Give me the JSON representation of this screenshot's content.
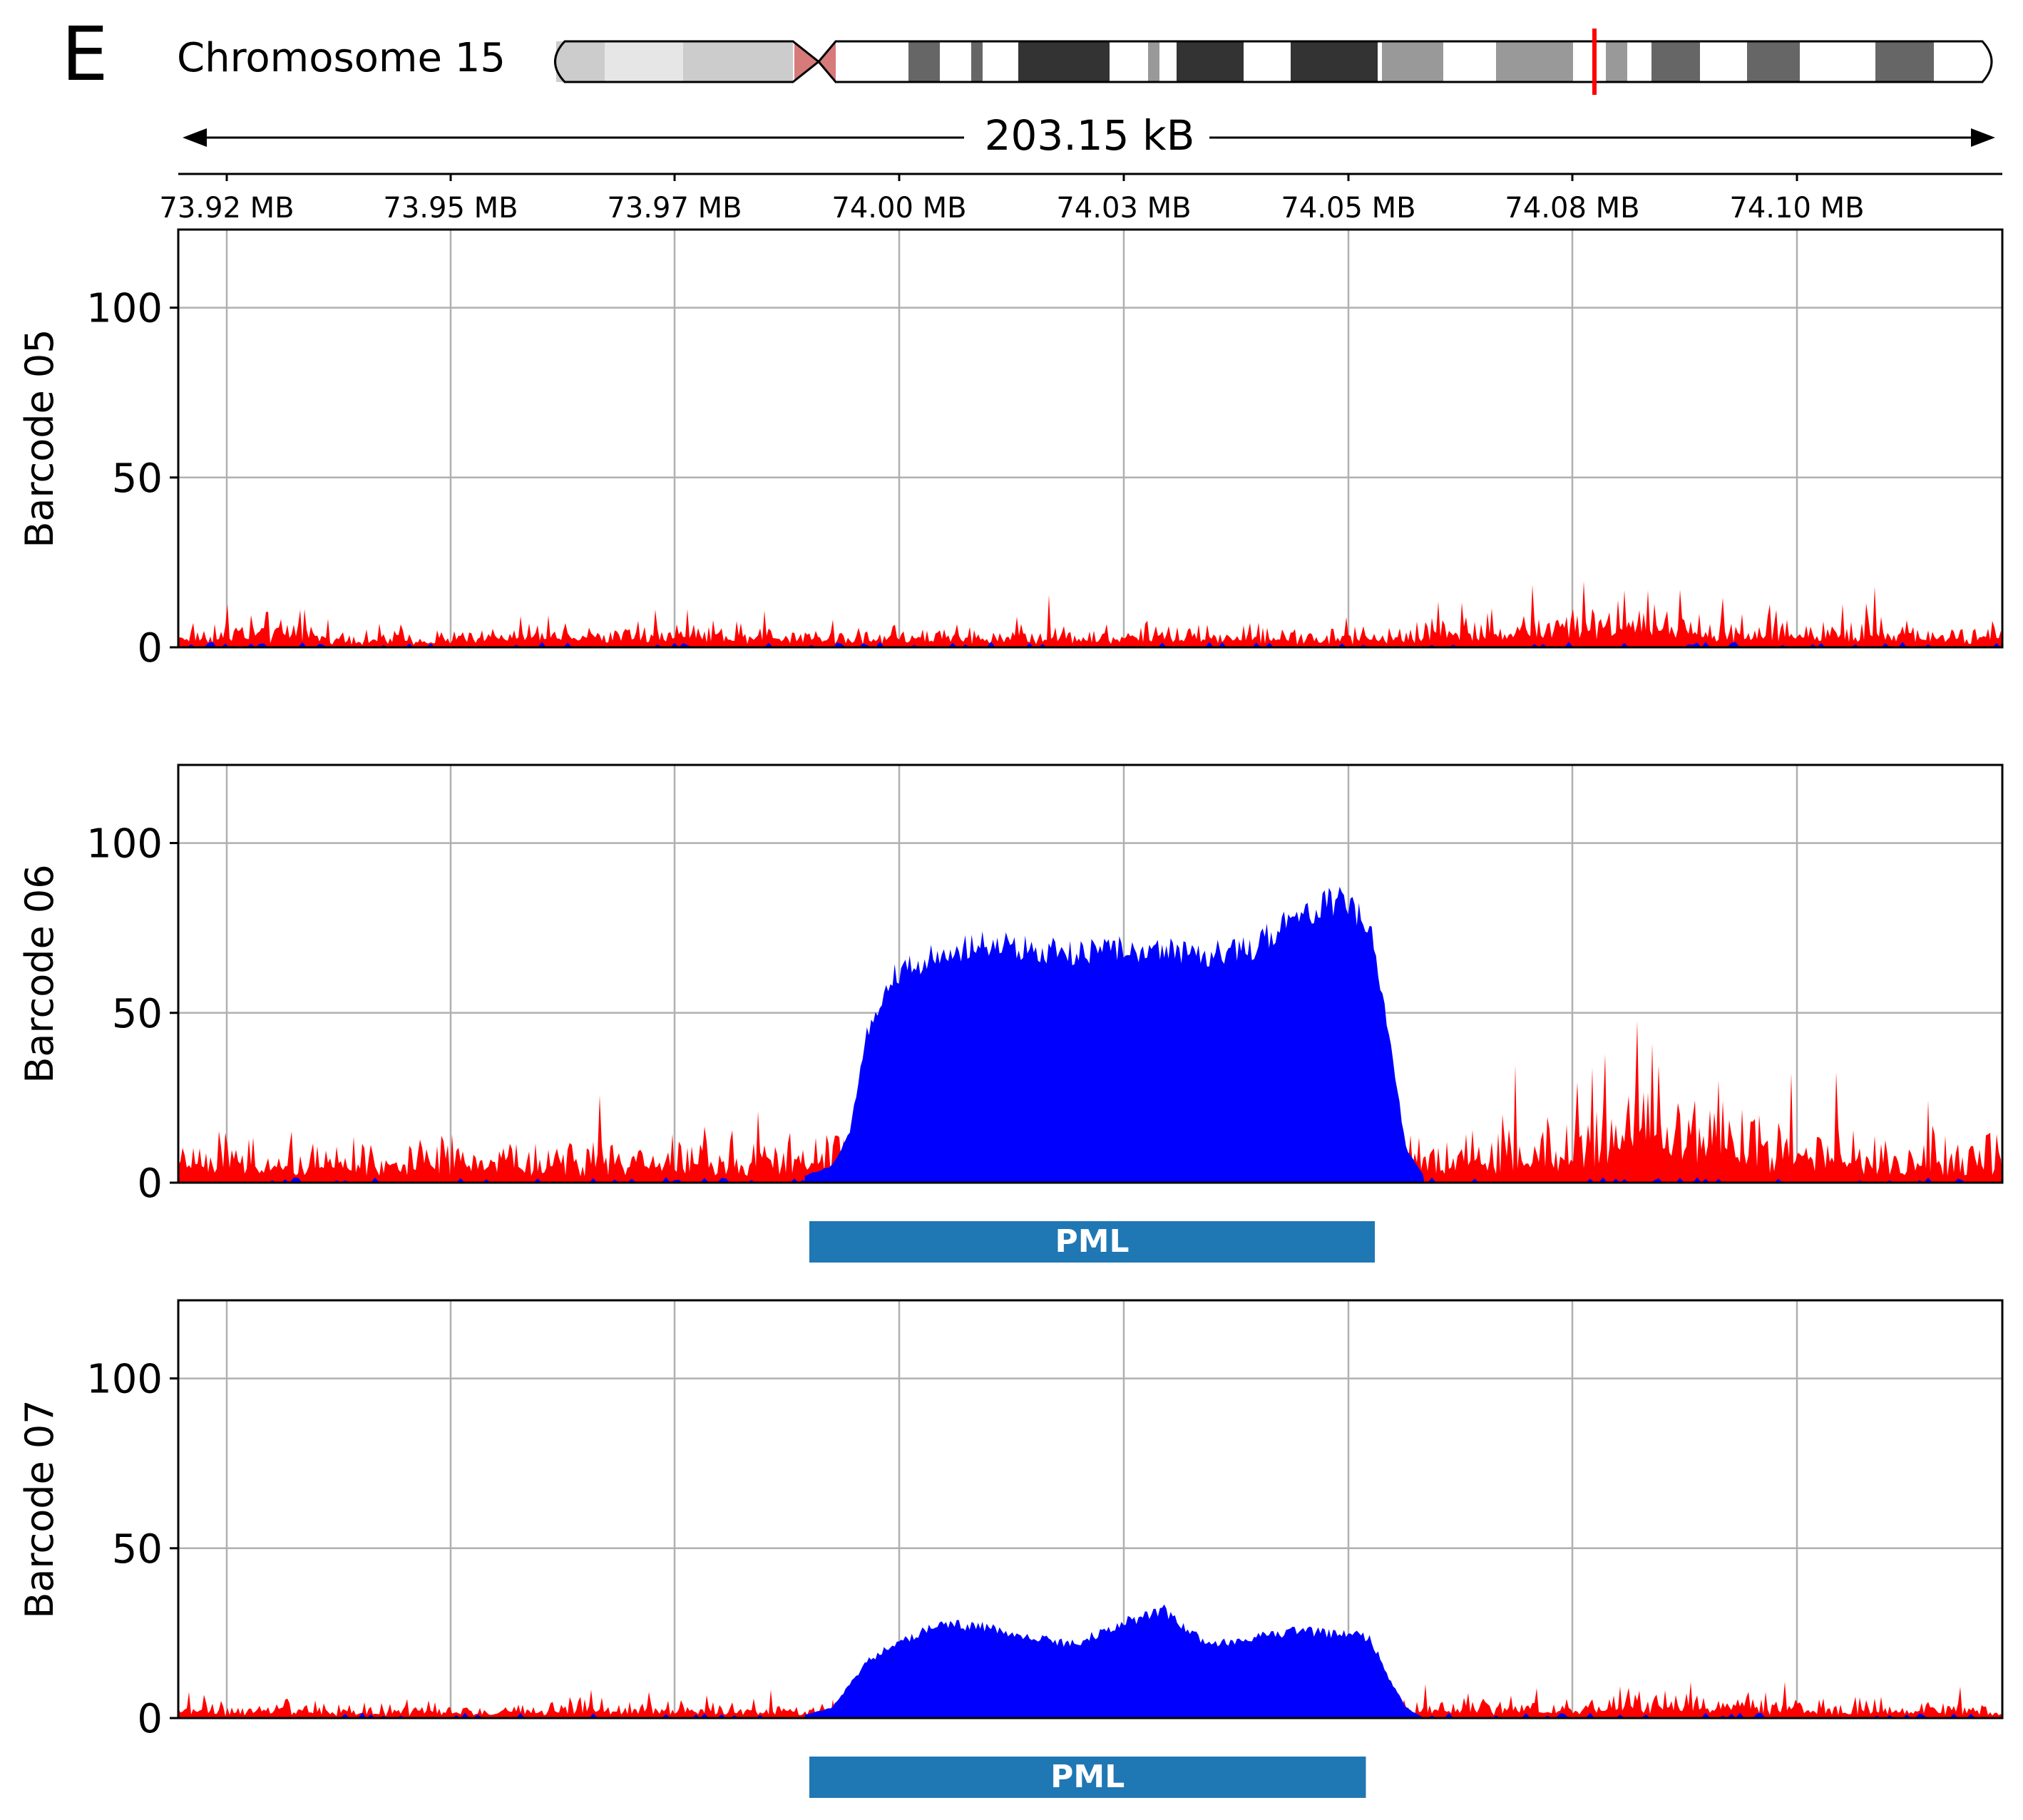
{
  "panel_letter": "E",
  "ideogram": {
    "label": "Chromosome 15",
    "span_label": "203.15 kB",
    "highlight_color": "#ff0000"
  },
  "colors": {
    "red_track": "#ff0000",
    "blue_track": "#0000ff",
    "gene_bar": "#1f77b4",
    "gene_text": "#ffffff",
    "grid": "#b0b0b0",
    "centromere": "#d67a7a"
  },
  "x_ticks": [
    "73.92 MB",
    "73.95 MB",
    "73.97 MB",
    "74.00 MB",
    "74.03 MB",
    "74.05 MB",
    "74.08 MB",
    "74.10 MB"
  ],
  "chart_data": [
    {
      "type": "area",
      "ylabel": "Barcode 05",
      "ylim": [
        0,
        123
      ],
      "yticks": [
        "0",
        "50",
        "100"
      ],
      "x_range_mb": [
        73.9152,
        74.1184
      ],
      "grid": true,
      "series": [
        {
          "color": "red",
          "x": [
            73.915,
            73.925,
            73.935,
            73.945,
            73.955,
            73.965,
            73.975,
            73.985,
            73.995,
            74.005,
            74.015,
            74.025,
            74.035,
            74.045,
            74.055,
            74.065,
            74.075,
            74.085,
            74.095,
            74.105,
            74.115
          ],
          "values": [
            5,
            7,
            4,
            4,
            5,
            6,
            6,
            5,
            5,
            5,
            5,
            5,
            5,
            4,
            7,
            8,
            11,
            8,
            6,
            6,
            5
          ]
        },
        {
          "color": "blue",
          "x": [
            73.915,
            74.115
          ],
          "values": [
            0,
            0
          ]
        }
      ]
    },
    {
      "type": "area",
      "ylabel": "Barcode 06",
      "ylim": [
        0,
        123
      ],
      "yticks": [
        "0",
        "50",
        "100"
      ],
      "x_range_mb": [
        73.9152,
        74.1184
      ],
      "grid": true,
      "series": [
        {
          "color": "red",
          "x": [
            73.915,
            73.925,
            73.935,
            73.945,
            73.955,
            73.965,
            73.975,
            73.985,
            73.995,
            74.005,
            74.015,
            74.025,
            74.035,
            74.045,
            74.055,
            74.065,
            74.075,
            74.085,
            74.095,
            74.105,
            74.115
          ],
          "values": [
            10,
            10,
            10,
            9,
            10,
            10,
            11,
            11,
            12,
            12,
            12,
            12,
            12,
            12,
            12,
            11,
            25,
            22,
            14,
            11,
            10
          ]
        },
        {
          "color": "blue",
          "x": [
            73.985,
            73.988,
            73.99,
            73.992,
            73.995,
            74.0,
            74.005,
            74.01,
            74.015,
            74.02,
            74.025,
            74.03,
            74.035,
            74.04,
            74.045,
            74.048,
            74.05,
            74.052,
            74.054
          ],
          "values": [
            2,
            5,
            15,
            45,
            62,
            68,
            72,
            70,
            68,
            70,
            69,
            68,
            70,
            80,
            84,
            78,
            45,
            10,
            2
          ]
        },
        {
          "color": "label",
          "gene": "PML",
          "start_mb": 73.9855,
          "end_mb": 74.0485
        }
      ]
    },
    {
      "type": "area",
      "ylabel": "Barcode 07",
      "ylim": [
        0,
        123
      ],
      "yticks": [
        "0",
        "50",
        "100"
      ],
      "x_range_mb": [
        73.9152,
        74.1184
      ],
      "grid": true,
      "series": [
        {
          "color": "red",
          "x": [
            73.915,
            73.925,
            73.935,
            73.945,
            73.955,
            73.965,
            73.975,
            73.985,
            73.995,
            74.005,
            74.015,
            74.025,
            74.035,
            74.045,
            74.055,
            74.065,
            74.075,
            74.085,
            74.095,
            74.105,
            74.115
          ],
          "values": [
            4,
            4,
            3,
            3,
            4,
            4,
            4,
            3,
            3,
            4,
            4,
            4,
            4,
            4,
            4,
            4,
            6,
            7,
            5,
            4,
            4
          ]
        },
        {
          "color": "blue",
          "x": [
            73.985,
            73.988,
            73.99,
            73.992,
            73.995,
            74.0,
            74.005,
            74.01,
            74.015,
            74.02,
            74.025,
            74.03,
            74.035,
            74.04,
            74.045,
            74.048,
            74.05,
            74.052,
            74.054
          ],
          "values": [
            1,
            3,
            10,
            17,
            22,
            28,
            27,
            24,
            22,
            28,
            32,
            22,
            24,
            26,
            25,
            24,
            12,
            3,
            0
          ]
        },
        {
          "color": "label",
          "gene": "PML",
          "start_mb": 73.9855,
          "end_mb": 74.0475
        }
      ]
    }
  ]
}
